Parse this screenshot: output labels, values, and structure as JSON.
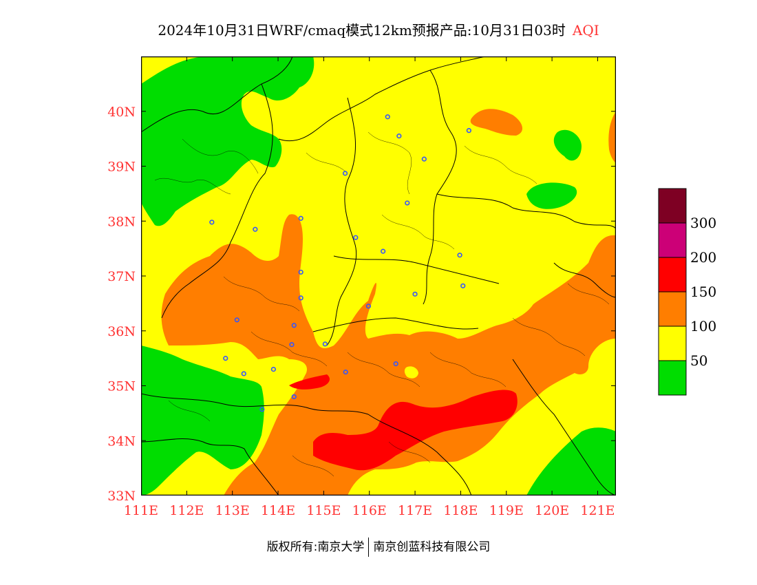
{
  "title": {
    "main": "2024年10月31日WRF/cmaq模式12km预报产品:10月31日03时",
    "variable": "AQI"
  },
  "map": {
    "lon_range": [
      111,
      121.4
    ],
    "lat_range": [
      33,
      41
    ],
    "x_ticks": [
      "111E",
      "112E",
      "113E",
      "114E",
      "115E",
      "116E",
      "117E",
      "118E",
      "119E",
      "120E",
      "121E"
    ],
    "y_ticks": [
      "33N",
      "34N",
      "35N",
      "36N",
      "37N",
      "38N",
      "39N",
      "40N"
    ],
    "colors": {
      "lt50": "#00dd00",
      "c50_100": "#ffff00",
      "c100_150": "#ff7e00",
      "c150_200": "#ff0000",
      "c200_300": "#cc0077",
      "gt300": "#7e0023",
      "boundary": "#000000",
      "city_marker": "#3355ff",
      "label": "#ff3333"
    },
    "cities": [
      {
        "lon": 116.4,
        "lat": 39.9
      },
      {
        "lon": 116.65,
        "lat": 39.55
      },
      {
        "lon": 117.2,
        "lat": 39.13
      },
      {
        "lon": 118.18,
        "lat": 39.65
      },
      {
        "lon": 115.47,
        "lat": 38.87
      },
      {
        "lon": 116.83,
        "lat": 38.33
      },
      {
        "lon": 112.55,
        "lat": 37.98
      },
      {
        "lon": 113.5,
        "lat": 37.85
      },
      {
        "lon": 114.5,
        "lat": 38.05
      },
      {
        "lon": 115.7,
        "lat": 37.7
      },
      {
        "lon": 116.3,
        "lat": 37.45
      },
      {
        "lon": 117.98,
        "lat": 37.38
      },
      {
        "lon": 114.5,
        "lat": 37.07
      },
      {
        "lon": 118.05,
        "lat": 36.82
      },
      {
        "lon": 117.0,
        "lat": 36.67
      },
      {
        "lon": 114.5,
        "lat": 36.6
      },
      {
        "lon": 115.98,
        "lat": 36.45
      },
      {
        "lon": 113.1,
        "lat": 36.2
      },
      {
        "lon": 114.35,
        "lat": 36.1
      },
      {
        "lon": 115.03,
        "lat": 35.76
      },
      {
        "lon": 114.3,
        "lat": 35.75
      },
      {
        "lon": 112.85,
        "lat": 35.5
      },
      {
        "lon": 116.58,
        "lat": 35.4
      },
      {
        "lon": 113.9,
        "lat": 35.3
      },
      {
        "lon": 115.48,
        "lat": 35.25
      },
      {
        "lon": 113.25,
        "lat": 35.22
      },
      {
        "lon": 114.35,
        "lat": 34.8
      },
      {
        "lon": 113.65,
        "lat": 34.57
      }
    ]
  },
  "legend": {
    "labels": [
      "50",
      "100",
      "150",
      "200",
      "300"
    ]
  },
  "copyright": {
    "left": "版权所有:南京大学",
    "right": "南京创蓝科技有限公司"
  }
}
